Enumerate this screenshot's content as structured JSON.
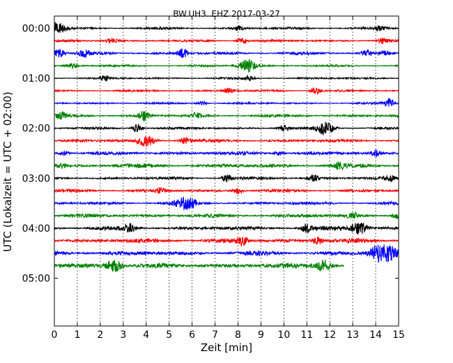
{
  "chart_data": {
    "type": "line",
    "title": "BW.UH3..EHZ 2017-03-27",
    "xlabel": "Zeit  [min]",
    "ylabel": "UTC (Lokalzeit = UTC + 02:00)",
    "xlim": [
      0,
      15
    ],
    "x_ticks": [
      "0",
      "1",
      "2",
      "3",
      "4",
      "5",
      "6",
      "7",
      "8",
      "9",
      "10",
      "11",
      "12",
      "13",
      "14",
      "15"
    ],
    "y_tick_labels": [
      "00:00",
      "01:00",
      "02:00",
      "03:00",
      "04:00",
      "05:00"
    ],
    "y_tick_row_index": [
      0,
      4,
      8,
      12,
      16,
      20
    ],
    "row_minutes": 15,
    "grid_x": true,
    "colors": [
      "#000000",
      "#ff0000",
      "#0000ff",
      "#008000"
    ],
    "rows": [
      {
        "start": "00:00",
        "end_min": 15,
        "amp": 0.35,
        "bursts": [
          [
            0.15,
            1.6
          ],
          [
            8.0,
            0.6
          ],
          [
            14.2,
            0.6
          ]
        ]
      },
      {
        "start": "00:15",
        "end_min": 15,
        "amp": 0.35,
        "bursts": [
          [
            2.5,
            0.7
          ],
          [
            8.2,
            0.8
          ],
          [
            14.3,
            0.7
          ]
        ]
      },
      {
        "start": "00:30",
        "end_min": 15,
        "amp": 0.45,
        "bursts": [
          [
            0.2,
            1.2
          ],
          [
            1.3,
            0.8
          ],
          [
            5.6,
            1.2
          ],
          [
            13.6,
            0.8
          ],
          [
            14.4,
            0.7
          ]
        ]
      },
      {
        "start": "00:45",
        "end_min": 15,
        "amp": 0.3,
        "bursts": [
          [
            0.8,
            0.7
          ],
          [
            8.4,
            1.8
          ]
        ]
      },
      {
        "start": "01:00",
        "end_min": 15,
        "amp": 0.3,
        "bursts": [
          [
            2.2,
            0.7
          ],
          [
            8.5,
            0.6
          ]
        ]
      },
      {
        "start": "01:15",
        "end_min": 15,
        "amp": 0.3,
        "bursts": [
          [
            7.6,
            0.7
          ],
          [
            11.4,
            1.0
          ]
        ]
      },
      {
        "start": "01:30",
        "end_min": 15,
        "amp": 0.3,
        "bursts": [
          [
            6.4,
            0.6
          ],
          [
            14.6,
            1.2
          ]
        ]
      },
      {
        "start": "01:45",
        "end_min": 15,
        "amp": 0.4,
        "bursts": [
          [
            0.3,
            0.8
          ],
          [
            3.9,
            1.3
          ],
          [
            6.2,
            0.7
          ]
        ]
      },
      {
        "start": "02:00",
        "end_min": 15,
        "amp": 0.35,
        "bursts": [
          [
            3.6,
            1.1
          ],
          [
            10.0,
            0.8
          ],
          [
            11.8,
            1.8
          ]
        ]
      },
      {
        "start": "02:15",
        "end_min": 15,
        "amp": 0.45,
        "bursts": [
          [
            4.0,
            1.5
          ],
          [
            5.7,
            0.8
          ]
        ]
      },
      {
        "start": "02:30",
        "end_min": 15,
        "amp": 0.55,
        "bursts": [
          [
            0.4,
            0.6
          ],
          [
            9.8,
            0.5
          ],
          [
            14.0,
            0.7
          ]
        ]
      },
      {
        "start": "02:45",
        "end_min": 15,
        "amp": 0.6,
        "bursts": [
          [
            0.3,
            0.6
          ],
          [
            12.4,
            0.8
          ]
        ]
      },
      {
        "start": "03:00",
        "end_min": 15,
        "amp": 0.4,
        "bursts": [
          [
            7.5,
            1.1
          ],
          [
            11.3,
            1.0
          ],
          [
            14.6,
            0.8
          ]
        ]
      },
      {
        "start": "03:15",
        "end_min": 15,
        "amp": 0.45,
        "bursts": [
          [
            4.6,
            0.7
          ],
          [
            8.0,
            0.8
          ]
        ]
      },
      {
        "start": "03:30",
        "end_min": 15,
        "amp": 0.45,
        "bursts": [
          [
            5.6,
            1.4
          ],
          [
            6.0,
            0.8
          ]
        ]
      },
      {
        "start": "03:45",
        "end_min": 15,
        "amp": 0.55,
        "bursts": [
          [
            13.0,
            0.9
          ],
          [
            14.9,
            0.8
          ]
        ]
      },
      {
        "start": "04:00",
        "end_min": 15,
        "amp": 0.6,
        "bursts": [
          [
            3.3,
            1.2
          ],
          [
            11.0,
            1.2
          ],
          [
            13.3,
            1.6
          ]
        ]
      },
      {
        "start": "04:15",
        "end_min": 15,
        "amp": 0.65,
        "bursts": [
          [
            8.2,
            1.2
          ],
          [
            11.5,
            1.0
          ]
        ]
      },
      {
        "start": "04:30",
        "end_min": 15,
        "amp": 0.7,
        "bursts": [
          [
            14.1,
            1.9
          ],
          [
            14.6,
            1.5
          ]
        ]
      },
      {
        "start": "04:45",
        "end_min": 12.6,
        "amp": 0.75,
        "bursts": [
          [
            2.6,
            1.6
          ],
          [
            11.7,
            1.6
          ]
        ]
      }
    ]
  }
}
